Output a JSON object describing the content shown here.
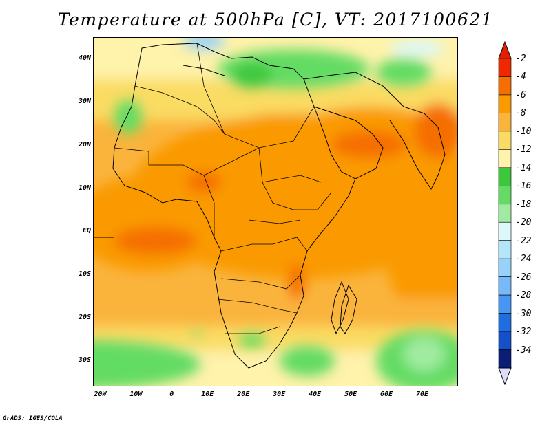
{
  "title": "Temperature at 500hPa [C], VT: 2017100621",
  "credit": "GrADS: IGES/COLA",
  "lat_labels": [
    {
      "text": "40N",
      "lat": 40
    },
    {
      "text": "30N",
      "lat": 30
    },
    {
      "text": "20N",
      "lat": 20
    },
    {
      "text": "10N",
      "lat": 10
    },
    {
      "text": "EQ",
      "lat": 0
    },
    {
      "text": "10S",
      "lat": -10
    },
    {
      "text": "20S",
      "lat": -20
    },
    {
      "text": "30S",
      "lat": -30
    }
  ],
  "lon_labels": [
    {
      "text": "20W",
      "lon": -20
    },
    {
      "text": "10W",
      "lon": -10
    },
    {
      "text": "0",
      "lon": 0
    },
    {
      "text": "10E",
      "lon": 10
    },
    {
      "text": "20E",
      "lon": 20
    },
    {
      "text": "30E",
      "lon": 30
    },
    {
      "text": "40E",
      "lon": 40
    },
    {
      "text": "50E",
      "lon": 50
    },
    {
      "text": "60E",
      "lon": 60
    },
    {
      "text": "70E",
      "lon": 70
    }
  ],
  "map_extent": {
    "lon": [
      -22,
      80
    ],
    "lat": [
      -36,
      45
    ]
  },
  "colorbar": {
    "labels": [
      "-2",
      "-4",
      "-6",
      "-8",
      "-10",
      "-12",
      "-14",
      "-16",
      "-18",
      "-20",
      "-22",
      "-24",
      "-26",
      "-28",
      "-30",
      "-32",
      "-34"
    ],
    "colors": [
      "#f02800",
      "#f56e00",
      "#fa9a00",
      "#fab43c",
      "#fadc64",
      "#fff2aa",
      "#3cc83c",
      "#64dc64",
      "#a0eba0",
      "#dcf8f8",
      "#b4e6fa",
      "#96d2fa",
      "#78b9fa",
      "#4696f5",
      "#1e6ee1",
      "#1450c8",
      "#0a1e78"
    ],
    "top_arrow_color": "#e02000",
    "bottom_arrow_color": "#dcdcfa"
  }
}
